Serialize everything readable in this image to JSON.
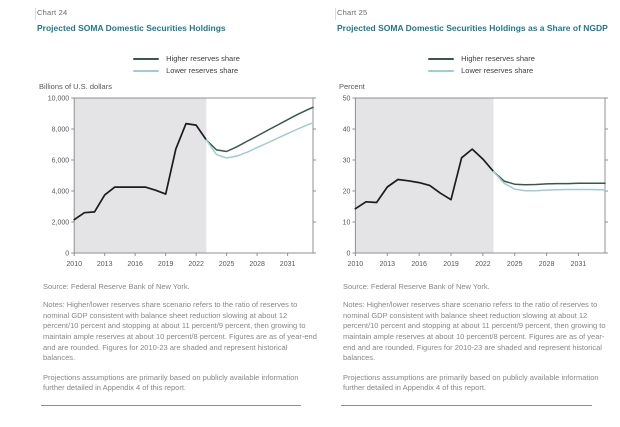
{
  "colors": {
    "historical": "#1c1c1c",
    "higher": "#39584a",
    "lower": "#9ecdd1",
    "shading": "#e4e4e6",
    "axis": "#909090",
    "tick_text": "#58585a",
    "title_teal": "#1b7a8e"
  },
  "panels": [
    {
      "chart_label": "Chart 24",
      "title": "Projected SOMA Domestic Securities Holdings",
      "unit_label": "Billions of U.S. dollars",
      "legend": [
        {
          "label": "Higher reserves share"
        },
        {
          "label": "Lower reserves share"
        }
      ],
      "source": "Source: Federal Reserve Bank of New York.",
      "notes": "Notes: Higher/lower reserves share scenario refers to the ratio of reserves to nominal GDP consistent with balance sheet reduction slowing at about 12 percent/10 percent and stopping at about 11 percent/9 percent, then growing to maintain ample reserves at about 10 percent/8 percent. Figures are as of year-end and are rounded. Figures for 2010-23 are shaded and represent historical balances.",
      "projections_note": "Projections assumptions are primarily based on publicly available information further detailed in Appendix 4 of this report."
    },
    {
      "chart_label": "Chart 25",
      "title": "Projected SOMA Domestic Securities Holdings as a Share of NGDP",
      "unit_label": "Percent",
      "legend": [
        {
          "label": "Higher reserves share"
        },
        {
          "label": "Lower reserves share"
        }
      ],
      "source": "Source: Federal Reserve Bank of New York.",
      "notes": "Notes: Higher/lower reserves share scenario refers to the ratio of reserves to nominal GDP consistent with balance sheet reduction slowing at about 12 percent/10 percent and stopping at about 11 percent/9 percent, then growing to maintain ample reserves at about 10 percent/8 percent. Figures are as of year-end and are rounded. Figures for 2010-23 are shaded and represent historical balances.",
      "projections_note": "Projections assumptions are primarily based on publicly available information further detailed in Appendix 4 of this report."
    }
  ],
  "chart_data": [
    {
      "type": "line",
      "title": "Projected SOMA Domestic Securities Holdings",
      "xlabel": "",
      "ylabel": "Billions of U.S. dollars",
      "ylim": [
        0,
        10000
      ],
      "yticks": [
        0,
        2000,
        4000,
        6000,
        8000,
        10000
      ],
      "ytick_labels": [
        "0",
        "2,000",
        "4,000",
        "6,000",
        "8,000",
        "10,000"
      ],
      "xlim": [
        2010,
        2033.5
      ],
      "xticks": [
        2010,
        2013,
        2016,
        2019,
        2022,
        2025,
        2028,
        2031
      ],
      "grid": false,
      "legend_position": "top",
      "shaded_span": [
        2010,
        2023
      ],
      "shaded_meaning": "2010-23 historical balances",
      "series": [
        {
          "name": "Historical",
          "color_key": "historical",
          "x": [
            2010,
            2011,
            2012,
            2013,
            2014,
            2015,
            2016,
            2017,
            2018,
            2019,
            2020,
            2021,
            2022,
            2023
          ],
          "values": [
            2150,
            2600,
            2650,
            3750,
            4250,
            4250,
            4250,
            4250,
            4050,
            3800,
            6700,
            8350,
            8250,
            7300
          ]
        },
        {
          "name": "Higher reserves share",
          "color_key": "higher",
          "x": [
            2023,
            2024,
            2025,
            2026,
            2027,
            2028,
            2029,
            2030,
            2031,
            2032,
            2033,
            2033.5
          ],
          "values": [
            7300,
            6650,
            6550,
            6850,
            7200,
            7550,
            7900,
            8250,
            8600,
            8950,
            9250,
            9400
          ]
        },
        {
          "name": "Lower reserves share",
          "color_key": "lower",
          "x": [
            2023,
            2024,
            2025,
            2026,
            2027,
            2028,
            2029,
            2030,
            2031,
            2032,
            2033,
            2033.5
          ],
          "values": [
            7300,
            6350,
            6130,
            6250,
            6500,
            6800,
            7100,
            7400,
            7700,
            8000,
            8280,
            8400
          ]
        }
      ]
    },
    {
      "type": "line",
      "title": "Projected SOMA Domestic Securities Holdings as a Share of NGDP",
      "xlabel": "",
      "ylabel": "Percent",
      "ylim": [
        0,
        50
      ],
      "yticks": [
        0,
        10,
        20,
        30,
        40,
        50
      ],
      "ytick_labels": [
        "0",
        "10",
        "20",
        "30",
        "40",
        "50"
      ],
      "xlim": [
        2010,
        2033.5
      ],
      "xticks": [
        2010,
        2013,
        2016,
        2019,
        2022,
        2025,
        2028,
        2031
      ],
      "grid": false,
      "legend_position": "top",
      "shaded_span": [
        2010,
        2023
      ],
      "shaded_meaning": "2010-23 historical balances",
      "series": [
        {
          "name": "Historical",
          "color_key": "historical",
          "x": [
            2010,
            2011,
            2012,
            2013,
            2014,
            2015,
            2016,
            2017,
            2018,
            2019,
            2020,
            2021,
            2022,
            2023
          ],
          "values": [
            14.3,
            16.5,
            16.3,
            21.3,
            23.7,
            23.3,
            22.7,
            21.8,
            19.3,
            17.2,
            30.7,
            33.5,
            30.3,
            26.3
          ]
        },
        {
          "name": "Higher reserves share",
          "color_key": "higher",
          "x": [
            2023,
            2024,
            2025,
            2026,
            2027,
            2028,
            2029,
            2030,
            2031,
            2032,
            2033,
            2033.5
          ],
          "values": [
            26.3,
            23.2,
            22.2,
            22.0,
            22.1,
            22.3,
            22.4,
            22.4,
            22.5,
            22.5,
            22.5,
            22.5
          ]
        },
        {
          "name": "Lower reserves share",
          "color_key": "lower",
          "x": [
            2023,
            2024,
            2025,
            2026,
            2027,
            2028,
            2029,
            2030,
            2031,
            2032,
            2033,
            2033.5
          ],
          "values": [
            26.3,
            22.5,
            20.6,
            20.1,
            20.1,
            20.3,
            20.4,
            20.5,
            20.5,
            20.5,
            20.4,
            20.4
          ]
        }
      ]
    }
  ]
}
